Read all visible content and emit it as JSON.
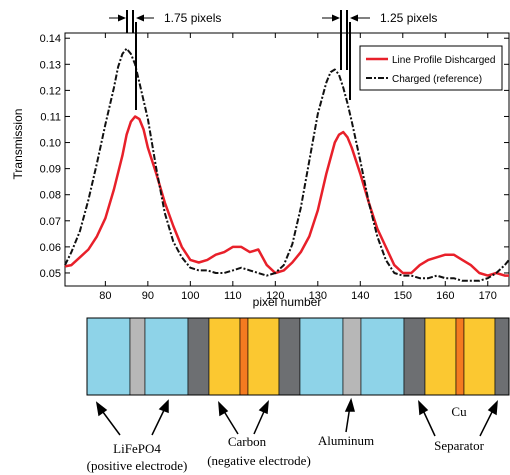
{
  "chart_data": {
    "type": "line",
    "xlabel": "pixel number",
    "ylabel": "Transmission",
    "xlim": [
      70.5,
      175
    ],
    "ylim": [
      0.045,
      0.142
    ],
    "xticks": [
      80,
      90,
      100,
      110,
      120,
      130,
      140,
      150,
      160,
      170
    ],
    "yticks": [
      0.05,
      0.06,
      0.07,
      0.08,
      0.09,
      0.1,
      0.11,
      0.12,
      0.13,
      0.14
    ],
    "ytick_labels": [
      "0.05",
      "0.06",
      "0.07",
      "0.08",
      "0.09",
      "0.10",
      "0.11",
      "0.12",
      "0.13",
      "0.14"
    ],
    "legend_position": "top-right",
    "series": [
      {
        "name": "Line Profile Dishcarged",
        "color": "#e8202a",
        "style": "solid",
        "x": [
          70.5,
          72,
          74,
          76,
          78,
          80,
          82,
          84,
          85,
          86,
          87,
          88,
          89,
          90,
          92,
          94,
          96,
          98,
          100,
          102,
          104,
          106,
          108,
          110,
          112,
          114,
          116,
          118,
          120,
          122,
          124,
          126,
          128,
          130,
          132,
          134,
          135,
          136,
          137,
          138,
          140,
          142,
          144,
          146,
          148,
          150,
          152,
          154,
          156,
          158,
          160,
          162,
          164,
          166,
          168,
          170,
          172,
          174,
          175
        ],
        "y": [
          0.0525,
          0.053,
          0.056,
          0.059,
          0.064,
          0.071,
          0.082,
          0.095,
          0.103,
          0.108,
          0.11,
          0.109,
          0.105,
          0.098,
          0.088,
          0.077,
          0.068,
          0.06,
          0.055,
          0.054,
          0.055,
          0.057,
          0.058,
          0.06,
          0.06,
          0.058,
          0.059,
          0.053,
          0.05,
          0.051,
          0.054,
          0.058,
          0.064,
          0.074,
          0.088,
          0.1,
          0.103,
          0.104,
          0.102,
          0.098,
          0.088,
          0.077,
          0.067,
          0.06,
          0.053,
          0.05,
          0.05,
          0.053,
          0.055,
          0.056,
          0.057,
          0.057,
          0.055,
          0.053,
          0.05,
          0.049,
          0.05,
          0.049,
          0.049
        ]
      },
      {
        "name": "Charged (reference)",
        "color": "#111111",
        "style": "dash-dot",
        "x": [
          70.5,
          72,
          74,
          76,
          78,
          80,
          82,
          83,
          84,
          85,
          86,
          87,
          88,
          90,
          92,
          94,
          96,
          98,
          100,
          102,
          104,
          106,
          108,
          110,
          112,
          114,
          116,
          118,
          120,
          122,
          124,
          126,
          128,
          130,
          132,
          133,
          134,
          135,
          136,
          137,
          138,
          140,
          142,
          144,
          146,
          148,
          150,
          152,
          154,
          156,
          158,
          160,
          162,
          164,
          166,
          168,
          170,
          172,
          174,
          175
        ],
        "y": [
          0.053,
          0.058,
          0.066,
          0.078,
          0.092,
          0.107,
          0.121,
          0.129,
          0.134,
          0.136,
          0.134,
          0.13,
          0.123,
          0.109,
          0.09,
          0.073,
          0.062,
          0.056,
          0.052,
          0.051,
          0.051,
          0.05,
          0.05,
          0.051,
          0.052,
          0.051,
          0.05,
          0.049,
          0.05,
          0.053,
          0.061,
          0.075,
          0.093,
          0.111,
          0.123,
          0.127,
          0.128,
          0.126,
          0.121,
          0.115,
          0.108,
          0.093,
          0.077,
          0.064,
          0.055,
          0.05,
          0.049,
          0.049,
          0.048,
          0.048,
          0.049,
          0.048,
          0.048,
          0.047,
          0.047,
          0.047,
          0.048,
          0.05,
          0.053,
          0.055
        ]
      }
    ],
    "annotations": [
      {
        "text": "1.75 pixels",
        "marker_x": [
          84.2,
          86.0
        ]
      },
      {
        "text": "1.25 pixels",
        "marker_x": [
          133.8,
          135.1
        ]
      }
    ]
  },
  "diagram": {
    "segments": [
      {
        "name": "lifepo4",
        "color": "#8ed3e8",
        "units": 43
      },
      {
        "name": "aluminum",
        "color": "#b7b7b7",
        "units": 15
      },
      {
        "name": "lifepo4",
        "color": "#8ed3e8",
        "units": 43
      },
      {
        "name": "separator",
        "color": "#6d6f72",
        "units": 21
      },
      {
        "name": "carbon",
        "color": "#fbc831",
        "units": 31
      },
      {
        "name": "copper",
        "color": "#f47b20",
        "units": 8
      },
      {
        "name": "carbon",
        "color": "#fbc831",
        "units": 31
      },
      {
        "name": "separator",
        "color": "#6d6f72",
        "units": 21
      },
      {
        "name": "lifepo4",
        "color": "#8ed3e8",
        "units": 43
      },
      {
        "name": "aluminum",
        "color": "#b7b7b7",
        "units": 18
      },
      {
        "name": "lifepo4",
        "color": "#8ed3e8",
        "units": 43
      },
      {
        "name": "separator",
        "color": "#6d6f72",
        "units": 21
      },
      {
        "name": "carbon",
        "color": "#fbc831",
        "units": 31
      },
      {
        "name": "copper",
        "color": "#f47b20",
        "units": 8
      },
      {
        "name": "carbon",
        "color": "#fbc831",
        "units": 31
      },
      {
        "name": "separator",
        "color": "#6d6f72",
        "units": 14
      }
    ],
    "labels": {
      "lifepo4": "LiFePO4",
      "lifepo4_sub": "(positive electrode)",
      "carbon": "Carbon",
      "carbon_sub": "(negative electrode)",
      "aluminum": "Aluminum",
      "separator": "Separator",
      "copper": "Cu"
    }
  }
}
